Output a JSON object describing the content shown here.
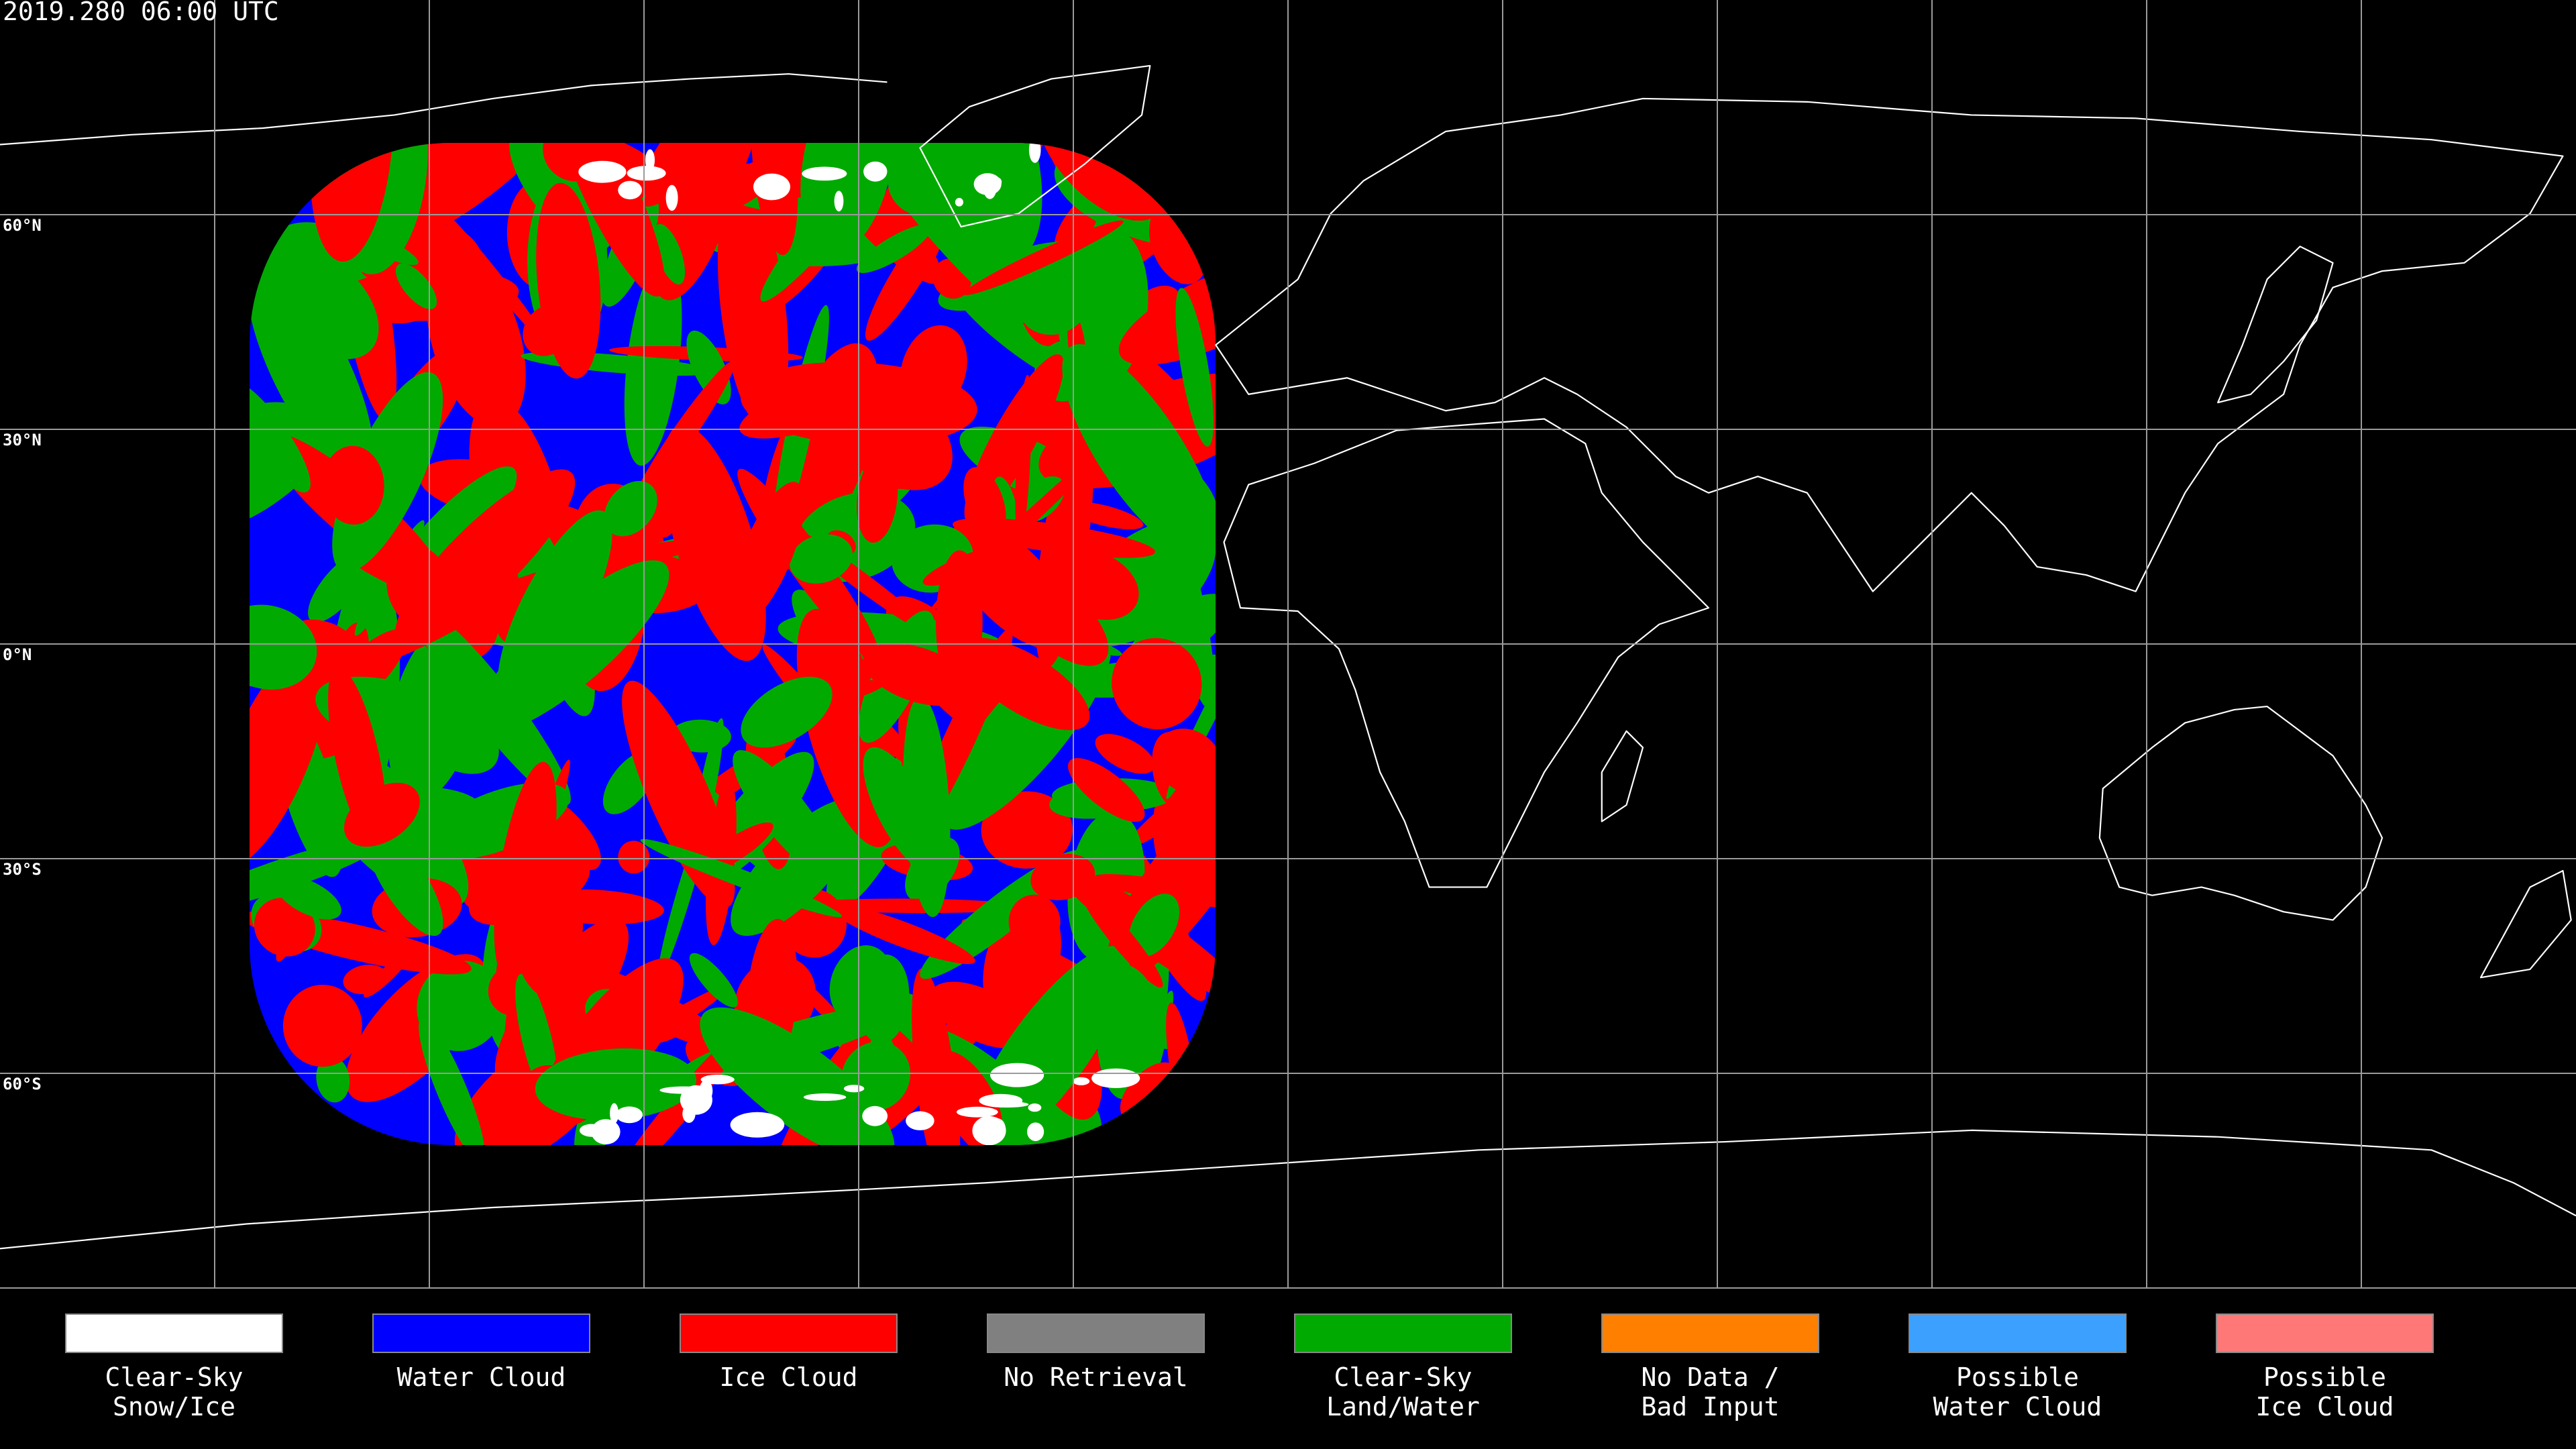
{
  "title": "2019.280 06:00 UTC",
  "latitude_labels": [
    "60°N",
    "30°N",
    "0°N",
    "30°S",
    "60°S"
  ],
  "legend": [
    {
      "label": [
        "Clear-Sky",
        "Snow/Ice"
      ],
      "color": "#ffffff"
    },
    {
      "label": [
        "Water Cloud"
      ],
      "color": "#0000ff"
    },
    {
      "label": [
        "Ice Cloud"
      ],
      "color": "#ff0000"
    },
    {
      "label": [
        "No Retrieval"
      ],
      "color": "#808080"
    },
    {
      "label": [
        "Clear-Sky",
        "Land/Water"
      ],
      "color": "#00aa00"
    },
    {
      "label": [
        "No Data /",
        "Bad Input"
      ],
      "color": "#ff8000"
    },
    {
      "label": [
        "Possible",
        "Water Cloud"
      ],
      "color": "#3ca0ff"
    },
    {
      "label": [
        "Possible",
        "Ice Cloud"
      ],
      "color": "#ff7878"
    }
  ]
}
